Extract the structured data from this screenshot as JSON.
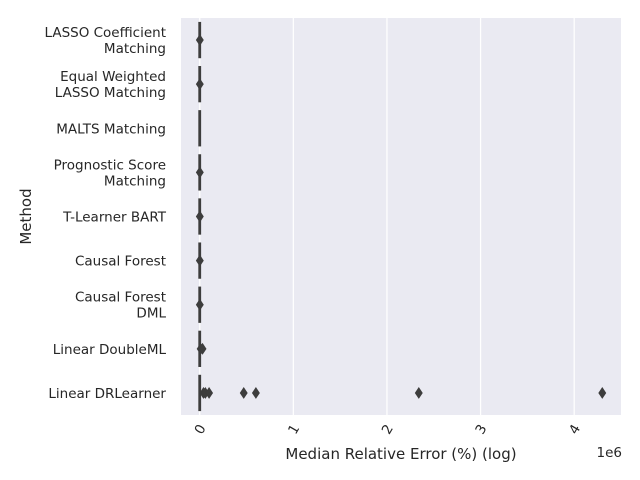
{
  "chart_data": {
    "type": "boxplot",
    "orientation": "horizontal",
    "xlabel": "Median Relative Error (%) (log)",
    "ylabel": "Method",
    "x_offset_text": "1e6",
    "xlim": [
      -200000,
      4500000
    ],
    "xticks": [
      0,
      1000000,
      2000000,
      3000000,
      4000000
    ],
    "xtick_labels": [
      "0",
      "1",
      "2",
      "3",
      "4"
    ],
    "grid": true,
    "background": "#EAEAF2",
    "box_color": "#3D3D3D",
    "categories": [
      {
        "label": "LASSO Coefficient\nMatching",
        "median": 0,
        "box": [
          0,
          0
        ],
        "whiskers": [
          0,
          0
        ],
        "outliers": [
          1000
        ]
      },
      {
        "label": "Equal Weighted\nLASSO Matching",
        "median": 0,
        "box": [
          0,
          0
        ],
        "whiskers": [
          0,
          0
        ],
        "outliers": [
          1000
        ]
      },
      {
        "label": "MALTS Matching",
        "median": 0,
        "box": [
          0,
          0
        ],
        "whiskers": [
          0,
          0
        ],
        "outliers": []
      },
      {
        "label": "Prognostic Score\nMatching",
        "median": 0,
        "box": [
          0,
          0
        ],
        "whiskers": [
          0,
          0
        ],
        "outliers": [
          1000
        ]
      },
      {
        "label": "T-Learner BART",
        "median": 0,
        "box": [
          0,
          0
        ],
        "whiskers": [
          0,
          0
        ],
        "outliers": [
          1000
        ]
      },
      {
        "label": "Causal Forest",
        "median": 0,
        "box": [
          0,
          0
        ],
        "whiskers": [
          0,
          0
        ],
        "outliers": [
          1000
        ]
      },
      {
        "label": "Causal Forest\nDML",
        "median": 0,
        "box": [
          0,
          0
        ],
        "whiskers": [
          0,
          0
        ],
        "outliers": [
          1000
        ]
      },
      {
        "label": "Linear DoubleML",
        "median": 0,
        "box": [
          0,
          0
        ],
        "whiskers": [
          0,
          0
        ],
        "outliers": [
          10000,
          30000
        ]
      },
      {
        "label": "Linear DRLearner",
        "median": 0,
        "box": [
          0,
          0
        ],
        "whiskers": [
          0,
          0
        ],
        "outliers": [
          40000,
          60000,
          100000,
          470000,
          600000,
          2340000,
          4300000
        ]
      }
    ]
  }
}
